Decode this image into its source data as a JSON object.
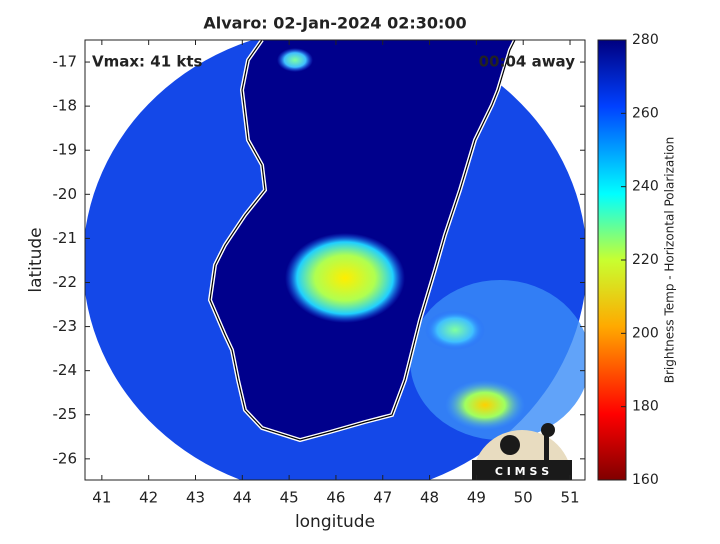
{
  "chart_data": {
    "type": "map",
    "title": "Alvaro: 02-Jan-2024 02:30:00",
    "annotations": [
      "Vmax: 41 kts",
      "00:04 away"
    ],
    "xlabel": "longitude",
    "ylabel": "latitude",
    "xlim": [
      40.64,
      51.32
    ],
    "xticks": [
      41,
      42,
      43,
      44,
      45,
      46,
      47,
      48,
      49,
      50,
      51
    ],
    "ylim": [
      -26.48,
      -16.5
    ],
    "yticks": [
      -17,
      -18,
      -19,
      -20,
      -21,
      -22,
      -23,
      -24,
      -25,
      -26
    ],
    "colorbar": {
      "label": "Brightness Temp - Horizontal Polarization",
      "lim": [
        160,
        280
      ],
      "ticks": [
        160,
        180,
        200,
        220,
        240,
        260,
        280
      ]
    },
    "logo": "C I M S S"
  }
}
